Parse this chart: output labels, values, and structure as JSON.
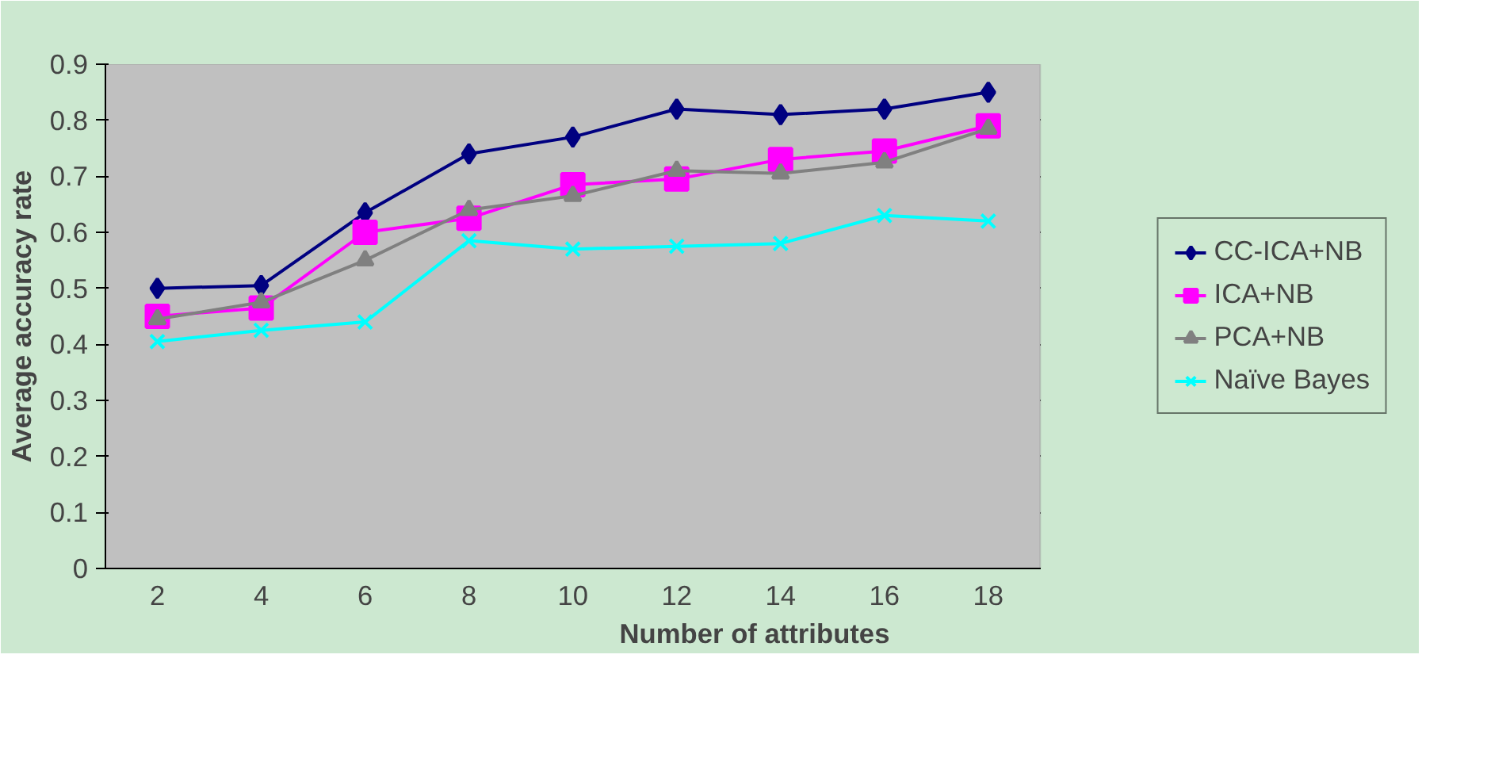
{
  "chart_data": {
    "type": "line",
    "xlabel": "Number of attributes",
    "ylabel": "Average accuracy rate",
    "categories": [
      "2",
      "4",
      "6",
      "8",
      "10",
      "12",
      "14",
      "16",
      "18"
    ],
    "series": [
      {
        "name": "CC-ICA+NB",
        "color": "#000080",
        "marker": "diamond",
        "values": [
          0.5,
          0.505,
          0.635,
          0.74,
          0.77,
          0.82,
          0.81,
          0.82,
          0.85
        ]
      },
      {
        "name": "ICA+NB",
        "color": "#ff00ff",
        "marker": "square",
        "values": [
          0.45,
          0.465,
          0.6,
          0.625,
          0.685,
          0.695,
          0.73,
          0.745,
          0.79
        ]
      },
      {
        "name": "PCA+NB",
        "color": "#808080",
        "marker": "triangle",
        "values": [
          0.445,
          0.475,
          0.55,
          0.64,
          0.665,
          0.71,
          0.705,
          0.725,
          0.785
        ]
      },
      {
        "name": "Naïve Bayes",
        "color": "#00ffff",
        "marker": "cross",
        "values": [
          0.405,
          0.425,
          0.44,
          0.585,
          0.57,
          0.575,
          0.58,
          0.63,
          0.62
        ]
      }
    ],
    "ylim": [
      0,
      0.9
    ],
    "yticks": [
      0,
      0.1,
      0.2,
      0.3,
      0.4,
      0.5,
      0.6,
      0.7,
      0.8,
      0.9
    ],
    "grid": "y",
    "legend": "right",
    "line_style": "solid"
  }
}
